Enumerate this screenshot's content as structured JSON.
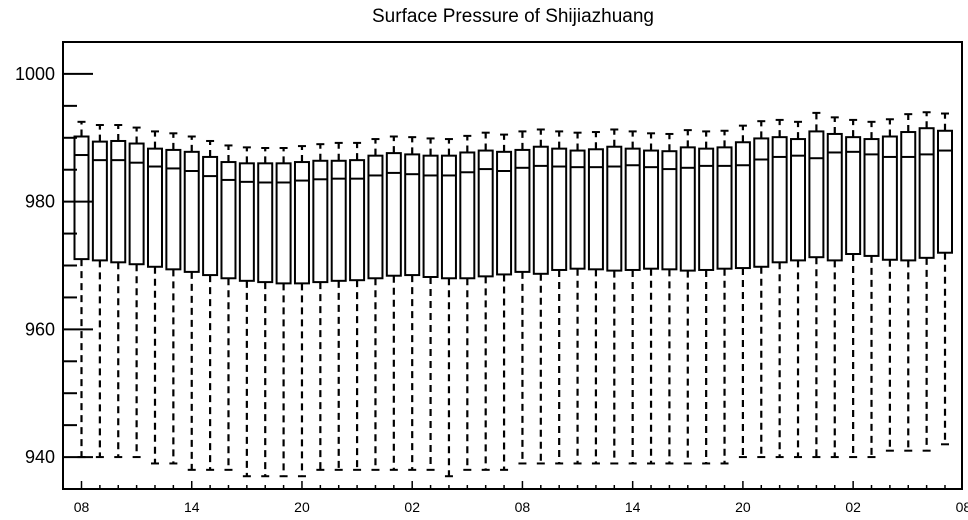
{
  "chart_data": {
    "type": "box",
    "title": "Surface Pressure of Shijiazhuang",
    "xlabel": "",
    "ylabel": "",
    "ylim": [
      935,
      1005
    ],
    "yticks": [
      940,
      960,
      980,
      1000
    ],
    "yminor_step": 5,
    "xtick_labels": [
      "08",
      "14",
      "20",
      "02",
      "08",
      "14",
      "20",
      "02",
      "08"
    ],
    "xtick_every": 6,
    "grid": false,
    "legend": "none",
    "colors": {
      "box": "#000000",
      "background": "#ffffff"
    },
    "series": [
      {
        "whisker_low": [
          940,
          940,
          940,
          940,
          939,
          939,
          938,
          938,
          938,
          937,
          937,
          937,
          937,
          938,
          938,
          938,
          938,
          938,
          938,
          938,
          937,
          938,
          938,
          938,
          939,
          939,
          939,
          939,
          939,
          939,
          939,
          939,
          939,
          939,
          939,
          939,
          940,
          940,
          940,
          940,
          940,
          940,
          940,
          940,
          941,
          941,
          941,
          942
        ],
        "q1": [
          971,
          970.8,
          970.5,
          970.2,
          969.8,
          969.4,
          969.0,
          968.5,
          968.0,
          967.6,
          967.4,
          967.2,
          967.2,
          967.4,
          967.6,
          967.7,
          968.0,
          968.4,
          968.5,
          968.2,
          968.0,
          968.0,
          968.3,
          968.6,
          969.0,
          968.7,
          969.3,
          969.5,
          969.4,
          969.2,
          969.3,
          969.5,
          969.4,
          969.2,
          969.3,
          969.5,
          969.6,
          969.8,
          970.5,
          970.8,
          971.3,
          970.8,
          971.8,
          971.5,
          970.9,
          970.8,
          971.2,
          972.0
        ],
        "median": [
          987.3,
          986.5,
          986.5,
          986.1,
          985.5,
          985.2,
          984.8,
          984.0,
          983.4,
          983.1,
          983.0,
          983.0,
          983.3,
          983.5,
          983.6,
          983.6,
          984.1,
          984.5,
          984.3,
          984.1,
          984.1,
          984.6,
          985.1,
          984.8,
          985.3,
          985.6,
          985.5,
          985.4,
          985.4,
          985.5,
          985.7,
          985.4,
          985.1,
          985.3,
          985.6,
          985.6,
          985.7,
          986.6,
          987.0,
          987.2,
          986.8,
          987.7,
          987.8,
          987.4,
          987.0,
          987.0,
          987.4,
          988.0
        ],
        "q3": [
          990.2,
          989.4,
          989.5,
          989.1,
          988.3,
          988.1,
          987.8,
          987.0,
          986.2,
          986.0,
          986.0,
          986.0,
          986.2,
          986.4,
          986.4,
          986.5,
          987.2,
          987.6,
          987.4,
          987.2,
          987.2,
          987.7,
          988.0,
          987.8,
          988.1,
          988.6,
          988.3,
          988.0,
          988.2,
          988.6,
          988.3,
          988.0,
          987.9,
          988.5,
          988.3,
          988.5,
          989.3,
          989.9,
          990.1,
          989.8,
          991.0,
          990.6,
          990.1,
          989.8,
          990.2,
          990.9,
          991.5,
          991.1
        ],
        "whisker_high": [
          992.5,
          992.0,
          992.0,
          991.6,
          991.0,
          990.7,
          990.2,
          989.5,
          988.8,
          988.5,
          988.4,
          988.4,
          988.7,
          989.0,
          989.2,
          989.2,
          989.8,
          990.2,
          990.1,
          989.9,
          989.8,
          990.3,
          990.8,
          990.5,
          991.0,
          991.3,
          991.0,
          990.8,
          990.9,
          991.3,
          991.0,
          990.7,
          990.6,
          991.2,
          991.0,
          991.1,
          991.9,
          992.6,
          992.8,
          992.5,
          993.9,
          993.2,
          992.8,
          992.5,
          992.9,
          993.7,
          994.0,
          993.8
        ]
      }
    ]
  }
}
